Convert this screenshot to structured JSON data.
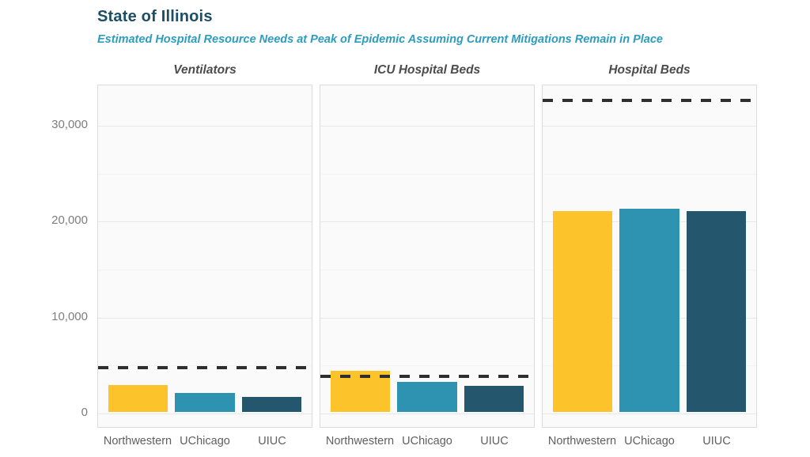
{
  "header": {
    "title": "State of Illinois",
    "subtitle": "Estimated Hospital Resource Needs at Peak of Epidemic Assuming Current Mitigations Remain in Place"
  },
  "colors": {
    "title_text": "#1c4e66",
    "subtitle_text": "#2d9cbe",
    "capacity_line": "#2e2e2e",
    "bars": [
      "#fdc32b",
      "#2d93b0",
      "#24566e"
    ]
  },
  "y_axis": {
    "tick_labels": [
      "0",
      "10,000",
      "20,000",
      "30,000"
    ],
    "tick_values": [
      0,
      10000,
      20000,
      30000
    ],
    "minor_values": [
      5000,
      15000,
      25000
    ]
  },
  "chart_data": [
    {
      "type": "bar",
      "title": "Ventilators",
      "categories": [
        "Northwestern",
        "UChicago",
        "UIUC"
      ],
      "values": [
        2800,
        1950,
        1600
      ],
      "capacity_line": 4600,
      "ylim": [
        0,
        34200
      ],
      "grid": true,
      "legend": "none"
    },
    {
      "type": "bar",
      "title": "ICU Hospital Beds",
      "categories": [
        "Northwestern",
        "UChicago",
        "UIUC"
      ],
      "values": [
        4300,
        3150,
        2750
      ],
      "capacity_line": 3750,
      "ylim": [
        0,
        34200
      ],
      "grid": true,
      "legend": "none"
    },
    {
      "type": "bar",
      "title": "Hospital Beds",
      "categories": [
        "Northwestern",
        "UChicago",
        "UIUC"
      ],
      "values": [
        20900,
        21200,
        20900
      ],
      "capacity_line": 32500,
      "ylim": [
        0,
        34200
      ],
      "grid": true,
      "legend": "none"
    }
  ]
}
